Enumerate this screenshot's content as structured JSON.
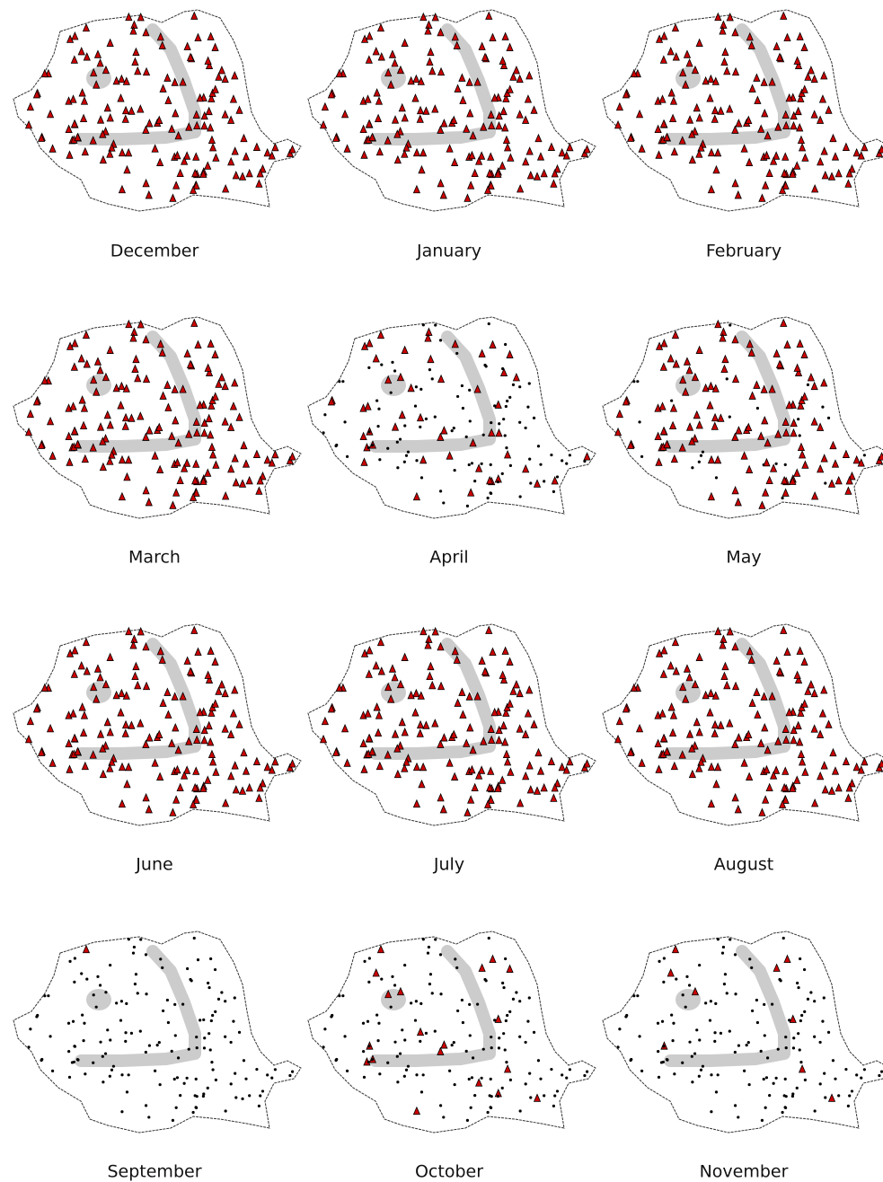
{
  "panels": [
    {
      "label": "December"
    },
    {
      "label": "January"
    },
    {
      "label": "February"
    },
    {
      "label": "March"
    },
    {
      "label": "April"
    },
    {
      "label": "May"
    },
    {
      "label": "June"
    },
    {
      "label": "July"
    },
    {
      "label": "August"
    },
    {
      "label": "September"
    },
    {
      "label": "October"
    },
    {
      "label": "November"
    }
  ]
}
